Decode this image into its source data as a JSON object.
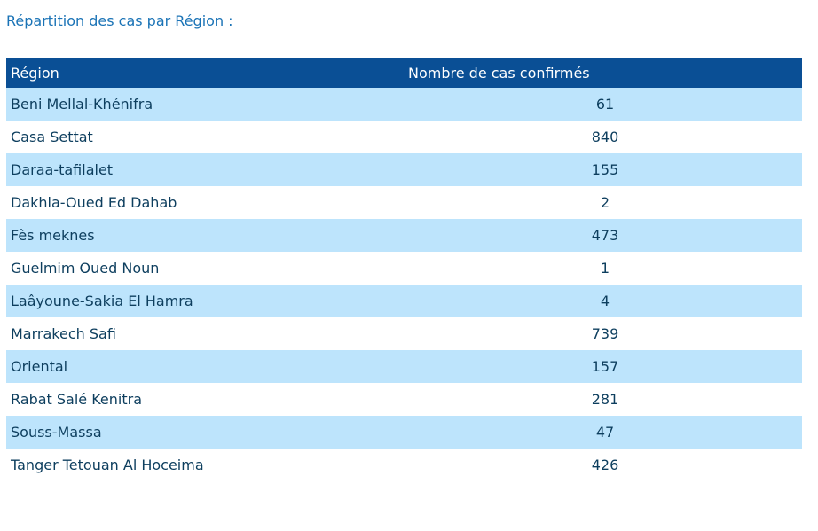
{
  "heading": "Répartition des cas par Région :",
  "table": {
    "headers": [
      "Région",
      "Nombre de cas confirmés"
    ],
    "rows": [
      {
        "region": "Beni Mellal-Khénifra",
        "count": "61"
      },
      {
        "region": "Casa Settat",
        "count": "840"
      },
      {
        "region": "Daraa-tafilalet",
        "count": "155"
      },
      {
        "region": "Dakhla-Oued Ed Dahab",
        "count": "2"
      },
      {
        "region": "Fès meknes",
        "count": "473"
      },
      {
        "region": "Guelmim Oued Noun",
        "count": "1"
      },
      {
        "region": "Laâyoune-Sakia El Hamra",
        "count": "4"
      },
      {
        "region": "Marrakech Safi",
        "count": "739"
      },
      {
        "region": "Oriental",
        "count": "157"
      },
      {
        "region": "Rabat Salé Kenitra",
        "count": "281"
      },
      {
        "region": "Souss-Massa",
        "count": "47"
      },
      {
        "region": "Tanger Tetouan Al Hoceima",
        "count": "426"
      }
    ]
  },
  "colors": {
    "heading": "#1a73b6",
    "header_bg": "#0a4f95",
    "row_alt_bg": "#bde4fc",
    "cell_text": "#0d3e5e"
  }
}
